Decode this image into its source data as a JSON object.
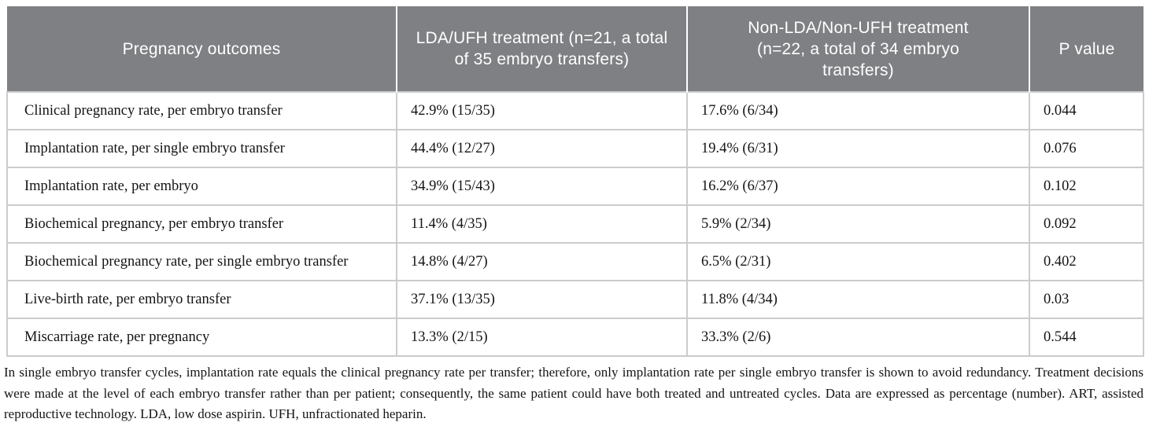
{
  "table": {
    "columns": [
      "Pregnancy outcomes",
      "LDA/UFH treatment (n=21, a total of 35 embryo transfers)",
      "Non-LDA/Non-UFH treatment (n=22, a total of 34 embryo transfers)",
      "P value"
    ],
    "rows": [
      [
        "Clinical pregnancy rate, per embryo transfer",
        "42.9% (15/35)",
        "17.6% (6/34)",
        "0.044"
      ],
      [
        "Implantation rate, per single embryo transfer",
        "44.4% (12/27)",
        "19.4% (6/31)",
        "0.076"
      ],
      [
        "Implantation rate, per embryo",
        "34.9% (15/43)",
        "16.2% (6/37)",
        "0.102"
      ],
      [
        "Biochemical pregnancy, per embryo transfer",
        "11.4% (4/35)",
        "5.9% (2/34)",
        "0.092"
      ],
      [
        "Biochemical pregnancy rate, per single embryo transfer",
        "14.8% (4/27)",
        "6.5% (2/31)",
        "0.402"
      ],
      [
        "Live-birth rate, per embryo transfer",
        "37.1% (13/35)",
        "11.8% (4/34)",
        "0.03"
      ],
      [
        "Miscarriage rate, per pregnancy",
        "13.3% (2/15)",
        "33.3% (2/6)",
        "0.544"
      ]
    ]
  },
  "footnote": "In single embryo transfer cycles, implantation rate equals the clinical pregnancy rate per transfer; therefore, only implantation rate per single embryo transfer is shown to avoid redundancy. Treatment decisions were made at the level of each embryo transfer rather than per patient; consequently, the same patient could have both treated and untreated cycles. Data are expressed as percentage (number). ART, assisted reproductive technology. LDA, low dose aspirin. UFH, unfractionated heparin.",
  "colors": {
    "header_bg": "#7e8083",
    "header_text": "#ffffff",
    "body_border": "#cbcccd",
    "body_text": "#141414"
  }
}
